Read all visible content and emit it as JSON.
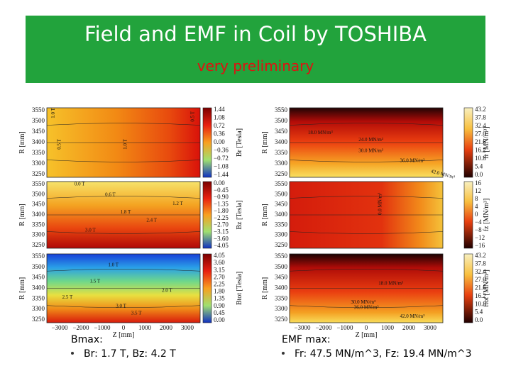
{
  "header": {
    "title": "Field and EMF in Coil by TOSHIBA",
    "subtitle": "very preliminary"
  },
  "panels": [
    {
      "y_label": "R [mm]",
      "yticks": [
        "3550",
        "3500",
        "3450",
        "3400",
        "3350",
        "3300",
        "3250"
      ],
      "colorbar_label": "Br [Tesla]",
      "colorbar_ticks": [
        "1.44",
        "1.08",
        "0.72",
        "0.36",
        "0.00",
        "−0.36",
        "−0.72",
        "−1.08",
        "−1.44"
      ],
      "contour_labels": [
        "1.0 T",
        "0.5 T",
        "1.0 T",
        "0.5 T"
      ]
    },
    {
      "y_label": "R [mm]",
      "yticks": [
        "3550",
        "3500",
        "3450",
        "3400",
        "3350",
        "3300",
        "3250"
      ],
      "colorbar_label": "Bz [Tesla]",
      "colorbar_ticks": [
        "0.00",
        "−0.45",
        "−0.90",
        "−1.35",
        "−1.80",
        "−2.25",
        "−2.70",
        "−3.15",
        "−3.60",
        "−4.05"
      ],
      "contour_labels": [
        "0.0 T",
        "0.6 T",
        "1.2 T",
        "1.8 T",
        "2.4 T",
        "3.0 T"
      ]
    },
    {
      "y_label": "R [mm]",
      "yticks": [
        "3550",
        "3500",
        "3450",
        "3400",
        "3350",
        "3300",
        "3250"
      ],
      "x_label": "Z [mm]",
      "xticks": [
        "−3000",
        "−2000",
        "−1000",
        "0",
        "1000",
        "2000",
        "3000"
      ],
      "colorbar_label": "Btot [Tesla]",
      "colorbar_ticks": [
        "4.05",
        "3.60",
        "3.15",
        "2.70",
        "2.25",
        "1.80",
        "1.35",
        "0.90",
        "0.45",
        "0.00"
      ],
      "contour_labels": [
        "1.0 T",
        "1.5 T",
        "2.0 T",
        "2.5 T",
        "3.0 T",
        "3.5 T"
      ]
    },
    {
      "y_label": "R [mm]",
      "yticks": [
        "3550",
        "3500",
        "3450",
        "3400",
        "3350",
        "3300",
        "3250"
      ],
      "colorbar_label": "fr [MN/m³]",
      "colorbar_ticks": [
        "43.2",
        "37.8",
        "32.4",
        "27.0",
        "21.6",
        "16.2",
        "10.8",
        "5.4",
        "0.0"
      ],
      "contour_labels": [
        "18.0 MN/m³",
        "24.0 MN/m³",
        "30.0 MN/m³",
        "36.0 MN/m³",
        "42.0 MN/m³"
      ]
    },
    {
      "y_label": "R [mm]",
      "yticks": [
        "3550",
        "3500",
        "3450",
        "3400",
        "3350",
        "3300",
        "3250"
      ],
      "colorbar_label": "fz [MN/m³]",
      "colorbar_ticks": [
        "16",
        "12",
        "8",
        "4",
        "0",
        "−4",
        "−8",
        "−12",
        "−16"
      ],
      "contour_labels": [
        "0.0 MN/m³"
      ]
    },
    {
      "y_label": "R [mm]",
      "yticks": [
        "3550",
        "3500",
        "3450",
        "3400",
        "3350",
        "3300",
        "3250"
      ],
      "x_label": "Z [mm]",
      "xticks": [
        "−3000",
        "−2000",
        "−1000",
        "0",
        "1000",
        "2000",
        "3000"
      ],
      "colorbar_label": "ftot [MN/m³]",
      "colorbar_ticks": [
        "43.2",
        "37.8",
        "32.4",
        "27.0",
        "21.6",
        "16.2",
        "10.8",
        "5.4",
        "0.0"
      ],
      "contour_labels": [
        "18.0 MN/m³",
        "30.0 MN/m³",
        "36.0 MN/m³",
        "42.0 MN/m³"
      ]
    }
  ],
  "notes": [
    {
      "heading": "Bmax:",
      "bullet": "Br: 1.7 T, Bz: 4.2 T"
    },
    {
      "heading": "EMF max:",
      "bullet": "Fr: 47.5 MN/m^3, Fz: 19.4 MN/m^3"
    }
  ]
}
